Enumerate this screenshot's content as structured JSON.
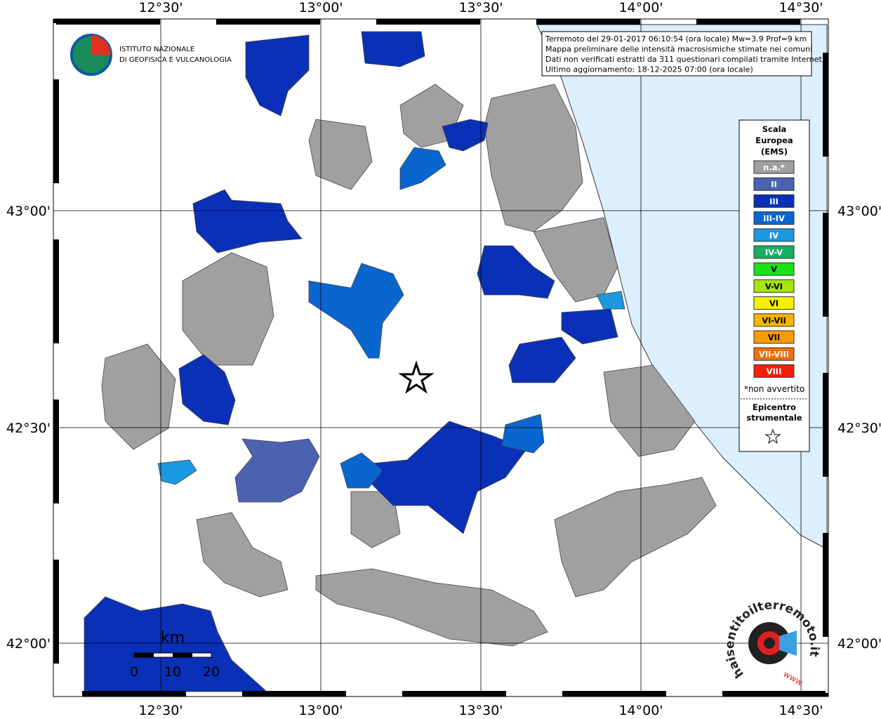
{
  "info": {
    "lines": [
      "Terremoto del 29-01-2017 06:10:54 (ora locale) Mw=3.9 Prof=9 km",
      "Mappa preliminare delle intensità macrosismiche stimate nei comuni",
      "Dati non verificati estratti da 311 questionari compilati tramite Internet.",
      "Ultimo aggiornamento: 18-12-2025 07:00 (ora locale)"
    ]
  },
  "logo": {
    "lines": [
      "ISTITUTO NAZIONALE",
      "DI GEOFISICA E VULCANOLOGIA"
    ]
  },
  "axes": {
    "longitudes": [
      "12°30'",
      "13°00'",
      "13°30'",
      "14°00'",
      "14°30'"
    ],
    "latitudes": [
      "43°00'",
      "42°30'",
      "42°00'"
    ]
  },
  "legend": {
    "title": [
      "Scala",
      "Europea",
      "(EMS)"
    ],
    "items": [
      {
        "label": "n.a.*",
        "color": "#a0a0a0"
      },
      {
        "label": "II",
        "color": "#4a62b0"
      },
      {
        "label": "III",
        "color": "#0a30b8"
      },
      {
        "label": "III-IV",
        "color": "#0a66cf"
      },
      {
        "label": "IV",
        "color": "#1a98e0"
      },
      {
        "label": "IV-V",
        "color": "#12b060"
      },
      {
        "label": "V",
        "color": "#1ae21a"
      },
      {
        "label": "V-VI",
        "color": "#a6e60c"
      },
      {
        "label": "VI",
        "color": "#f5f200"
      },
      {
        "label": "VI-VII",
        "color": "#f5b600"
      },
      {
        "label": "VII",
        "color": "#f59a00"
      },
      {
        "label": "VII-VIII",
        "color": "#f06e0a"
      },
      {
        "label": "VIII",
        "color": "#f0200a"
      }
    ],
    "note": "*non avvertito",
    "epicenter": [
      "Epicentro",
      "strumentale"
    ]
  },
  "scale_bar": {
    "unit": "km",
    "labels": [
      "0",
      "10",
      "20"
    ]
  },
  "badge": {
    "text": "haisentitoilterremoto.it",
    "www": "www."
  }
}
